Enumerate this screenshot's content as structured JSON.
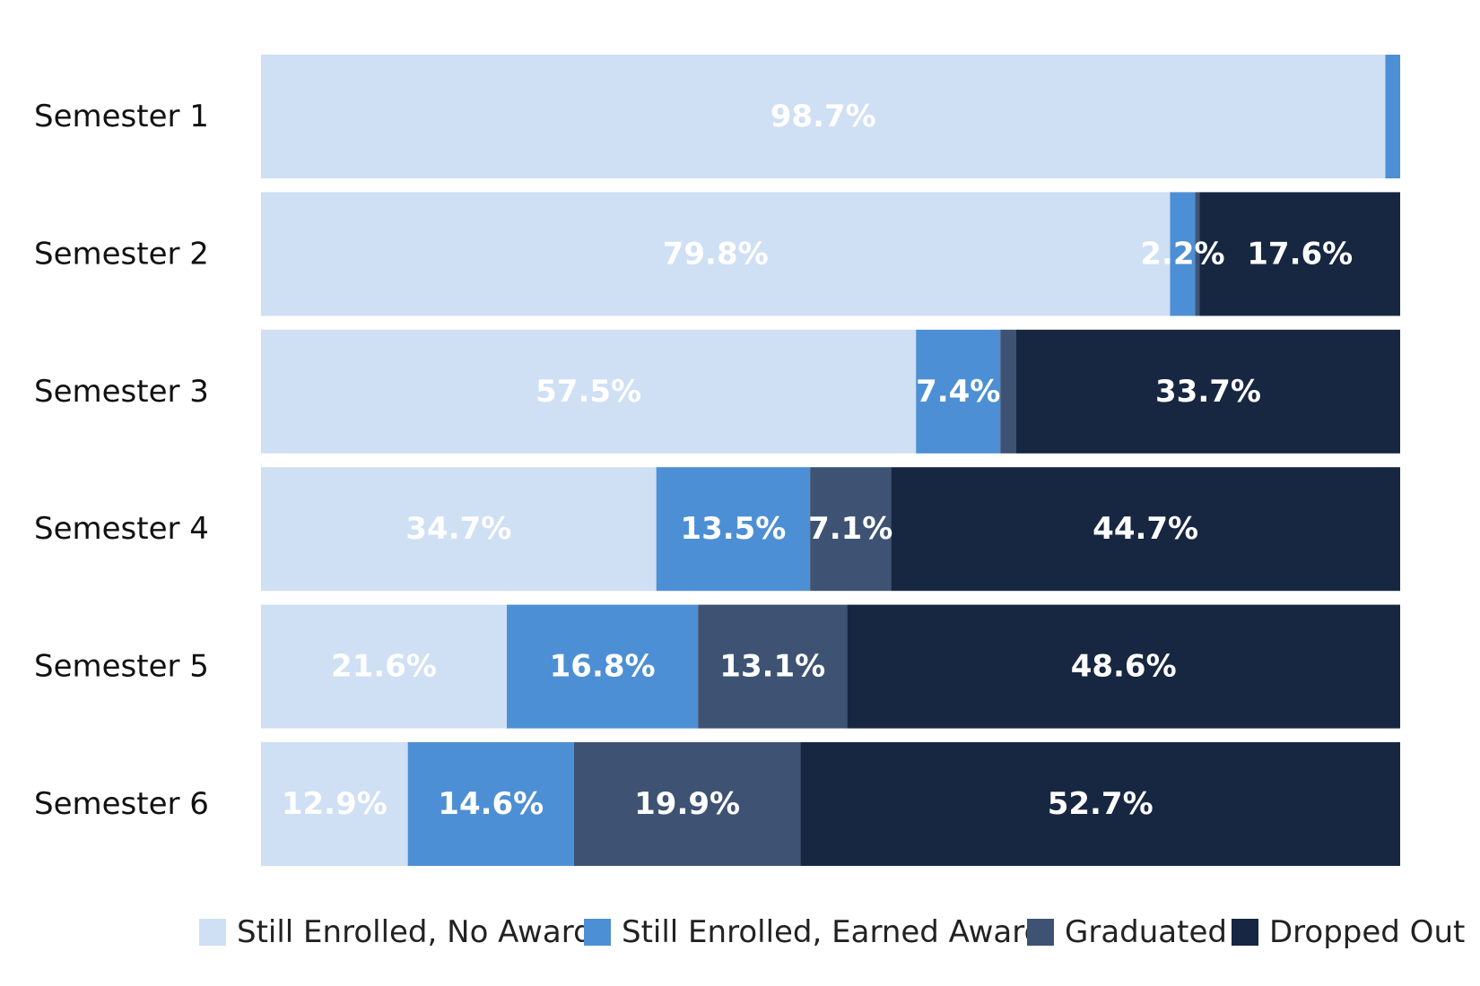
{
  "chart_data": {
    "type": "bar",
    "orientation": "horizontal",
    "stacked": true,
    "title": "",
    "xlabel": "",
    "ylabel": "",
    "xlim": [
      0,
      100
    ],
    "grid": false,
    "legend_position": "bottom",
    "categories": [
      "Semester 1",
      "Semester 2",
      "Semester 3",
      "Semester 4",
      "Semester 5",
      "Semester 6"
    ],
    "series": [
      {
        "name": "Still Enrolled, No Award",
        "color": "#cfdff4",
        "values": [
          98.7,
          79.8,
          57.5,
          34.7,
          21.6,
          12.9
        ],
        "labels": [
          "98.7%",
          "79.8%",
          "57.5%",
          "34.7%",
          "21.6%",
          "12.9%"
        ]
      },
      {
        "name": "Still Enrolled, Earned Award",
        "color": "#4d8fd4",
        "values": [
          1.3,
          2.2,
          7.4,
          13.5,
          16.8,
          14.6
        ],
        "labels": [
          "",
          "2.2%",
          "7.4%",
          "13.5%",
          "16.8%",
          "14.6%"
        ]
      },
      {
        "name": "Graduated",
        "color": "#3e5373",
        "values": [
          0.0,
          0.4,
          1.4,
          7.1,
          13.1,
          19.9
        ],
        "labels": [
          "",
          "",
          "",
          "7.1%",
          "13.1%",
          "19.9%"
        ]
      },
      {
        "name": "Dropped Out",
        "color": "#172741",
        "values": [
          0.0,
          17.6,
          33.7,
          44.7,
          48.6,
          52.7
        ],
        "labels": [
          "",
          "17.6%",
          "33.7%",
          "44.7%",
          "48.6%",
          "52.7%"
        ]
      }
    ]
  }
}
